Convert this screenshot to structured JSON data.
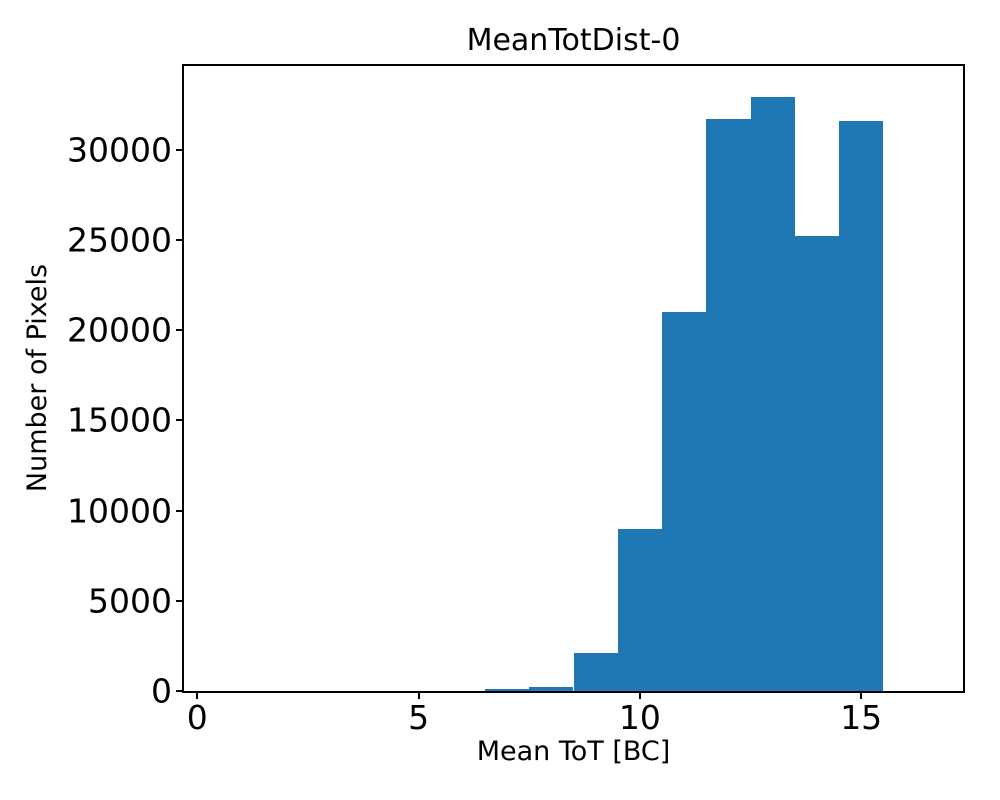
{
  "chart_data": {
    "type": "bar",
    "subtype": "histogram",
    "title": "MeanTotDist-0",
    "xlabel": "Mean ToT [BC]",
    "ylabel": "Number of Pixels",
    "bar_color": "#1f77b4",
    "axis_color": "#000000",
    "background_color": "#ffffff",
    "bin_edges": [
      6.5,
      7.5,
      8.5,
      9.5,
      10.5,
      11.5,
      12.5,
      13.5,
      14.5,
      15.5
    ],
    "counts": [
      100,
      250,
      2100,
      9000,
      21000,
      31700,
      32900,
      25200,
      31600
    ],
    "xlim": [
      -0.3,
      17.3
    ],
    "ylim": [
      0,
      34640
    ],
    "xticks": [
      0,
      5,
      10,
      15
    ],
    "yticks": [
      0,
      5000,
      10000,
      15000,
      20000,
      25000,
      30000
    ],
    "grid": false,
    "legend": null
  }
}
